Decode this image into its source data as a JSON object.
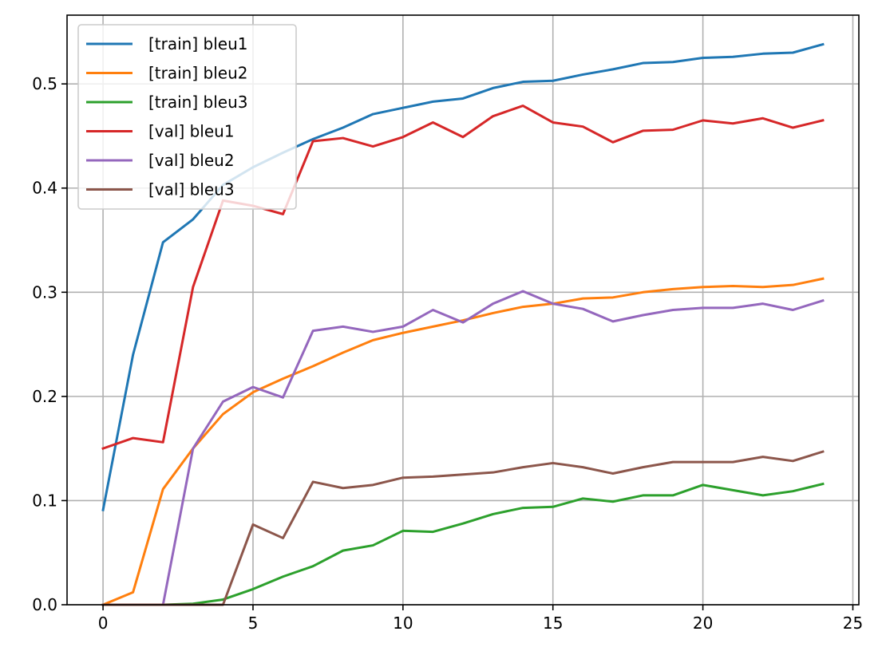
{
  "chart_data": {
    "type": "line",
    "title": "",
    "xlabel": "",
    "ylabel": "",
    "xlim": [
      -1.2,
      25.2
    ],
    "ylim": [
      0,
      0.566
    ],
    "xticks": [
      0,
      5,
      10,
      15,
      20,
      25
    ],
    "yticks": [
      0.0,
      0.1,
      0.2,
      0.3,
      0.4,
      0.5
    ],
    "grid": true,
    "legend_position": "top-left",
    "x": [
      0,
      1,
      2,
      3,
      4,
      5,
      6,
      7,
      8,
      9,
      10,
      11,
      12,
      13,
      14,
      15,
      16,
      17,
      18,
      19,
      20,
      21,
      22,
      23,
      24
    ],
    "series": [
      {
        "name": "[train] bleu1",
        "color": "#1f77b4",
        "values": [
          0.091,
          0.24,
          0.348,
          0.37,
          0.403,
          0.42,
          0.434,
          0.447,
          0.458,
          0.471,
          0.477,
          0.483,
          0.486,
          0.496,
          0.502,
          0.503,
          0.509,
          0.514,
          0.52,
          0.521,
          0.525,
          0.526,
          0.529,
          0.53,
          0.538
        ]
      },
      {
        "name": "[train] bleu2",
        "color": "#ff7f0e",
        "values": [
          0.0,
          0.012,
          0.111,
          0.15,
          0.183,
          0.204,
          0.217,
          0.229,
          0.242,
          0.254,
          0.261,
          0.267,
          0.273,
          0.28,
          0.286,
          0.289,
          0.294,
          0.295,
          0.3,
          0.303,
          0.305,
          0.306,
          0.305,
          0.307,
          0.313
        ]
      },
      {
        "name": "[train] bleu3",
        "color": "#2ca02c",
        "values": [
          0.0,
          0.0,
          0.0,
          0.001,
          0.005,
          0.015,
          0.027,
          0.037,
          0.052,
          0.057,
          0.071,
          0.07,
          0.078,
          0.087,
          0.093,
          0.094,
          0.102,
          0.099,
          0.105,
          0.105,
          0.115,
          0.11,
          0.105,
          0.109,
          0.116
        ]
      },
      {
        "name": "[val] bleu1",
        "color": "#d62728",
        "values": [
          0.15,
          0.16,
          0.156,
          0.305,
          0.388,
          0.383,
          0.375,
          0.445,
          0.448,
          0.44,
          0.449,
          0.463,
          0.449,
          0.469,
          0.479,
          0.463,
          0.459,
          0.444,
          0.455,
          0.456,
          0.465,
          0.462,
          0.467,
          0.458,
          0.465
        ]
      },
      {
        "name": "[val] bleu2",
        "color": "#9467bd",
        "values": [
          0.0,
          0.0,
          0.0,
          0.15,
          0.195,
          0.209,
          0.199,
          0.263,
          0.267,
          0.262,
          0.267,
          0.283,
          0.271,
          0.289,
          0.301,
          0.289,
          0.284,
          0.272,
          0.278,
          0.283,
          0.285,
          0.285,
          0.289,
          0.283,
          0.292
        ]
      },
      {
        "name": "[val] bleu3",
        "color": "#8c564b",
        "values": [
          0.0,
          0.0,
          0.0,
          0.0,
          0.0,
          0.077,
          0.064,
          0.118,
          0.112,
          0.115,
          0.122,
          0.123,
          0.125,
          0.127,
          0.132,
          0.136,
          0.132,
          0.126,
          0.132,
          0.137,
          0.137,
          0.137,
          0.142,
          0.138,
          0.147
        ]
      }
    ]
  }
}
